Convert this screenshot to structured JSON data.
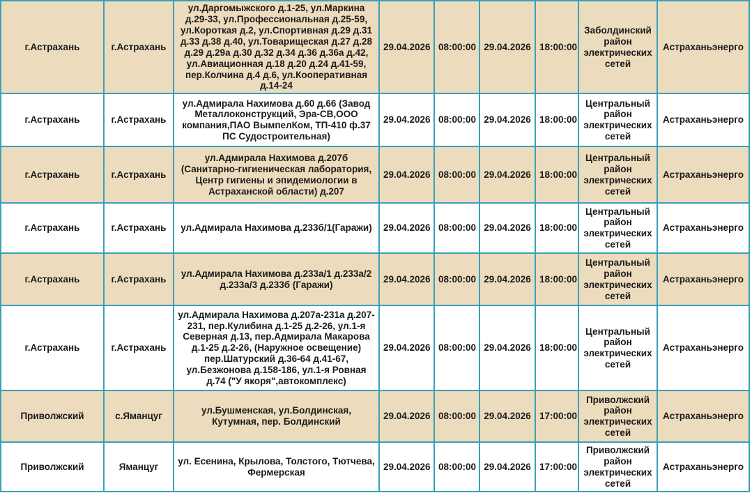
{
  "colors": {
    "row_beige_bg": "#ecdcbd",
    "row_white_bg": "#ffffff",
    "border_teal": "#38a0ba",
    "text": "#1b1b1b"
  },
  "table": {
    "rows": [
      {
        "cells": [
          "г.Астрахань",
          "г.Астрахань",
          "ул.Даргомыжского д.1-25, ул.Маркина д.29-33, ул.Профессиональная д.25-59, ул.Короткая д.2, ул.Спортивная д.29 д.31 д.33 д.38 д.40, ул.Товарищеская д.27 д.28 д.29 д.29а д.30 д.32 д.34 д.36 д.36а д.42, ул.Авиационная д.18 д.20 д.24 д.41-59, пер.Колчина д.4 д.6, ул.Кооперативная д.14-24",
          "29.04.2026",
          "08:00:00",
          "29.04.2026",
          "18:00:00",
          "Заболдинский район электрических сетей",
          "Астраханьэнерго"
        ]
      },
      {
        "cells": [
          "г.Астрахань",
          "г.Астрахань",
          "ул.Адмирала Нахимова д.60 д.66 (Завод Металлоконструкций, Эра-СВ,ООО компания,ПАО ВымпелКом, ТП-410 ф.37 ПС Судостроительная)",
          "29.04.2026",
          "08:00:00",
          "29.04.2026",
          "18:00:00",
          "Центральный район электрических сетей",
          "Астраханьэнерго"
        ]
      },
      {
        "cells": [
          "г.Астрахань",
          "г.Астрахань",
          "ул.Адмирала Нахимова д.207б (Санитарно-гигиеническая лаборатория, Центр гигиены и эпидемиологии в Астраханской области) д.207",
          "29.04.2026",
          "08:00:00",
          "29.04.2026",
          "18:00:00",
          "Центральный район электрических сетей",
          "Астраханьэнерго"
        ]
      },
      {
        "cells": [
          "г.Астрахань",
          "г.Астрахань",
          "ул.Адмирала Нахимова д.233б/1(Гаражи)",
          "29.04.2026",
          "08:00:00",
          "29.04.2026",
          "18:00:00",
          "Центральный район электрических сетей",
          "Астраханьэнерго"
        ]
      },
      {
        "cells": [
          "г.Астрахань",
          "г.Астрахань",
          "ул.Адмирала Нахимова д.233а/1 д.233а/2 д.233а/3 д.233б (Гаражи)",
          "29.04.2026",
          "08:00:00",
          "29.04.2026",
          "18:00:00",
          "Центральный район электрических сетей",
          "Астраханьэнерго"
        ]
      },
      {
        "cells": [
          "г.Астрахань",
          "г.Астрахань",
          "ул.Адмирала Нахимова д.207а-231а д.207-231, пер.Кулибина д.1-25 д.2-26, ул.1-я Северная д.13, пер.Адмирала Макарова д.1-25 д.2-26, (Наружное освещение) пер.Шатурский д.36-64 д.41-67, ул.Безжонова д.158-186, ул.1-я Ровная д.74 (\"У якоря\",автокомплекс)",
          "29.04.2026",
          "08:00:00",
          "29.04.2026",
          "18:00:00",
          "Центральный район электрических сетей",
          "Астраханьэнерго"
        ]
      },
      {
        "cells": [
          "Приволжский",
          "с.Яманцуг",
          "ул.Бушменская, ул.Болдинская, Кутумная, пер. Болдинский",
          "29.04.2026",
          "08:00:00",
          "29.04.2026",
          "17:00:00",
          "Приволжский район электрических сетей",
          "Астраханьэнерго"
        ]
      },
      {
        "cells": [
          "Приволжский",
          "Яманцуг",
          "ул. Есенина, Крылова, Толстого, Тютчева, Фермерская",
          "29.04.2026",
          "08:00:00",
          "29.04.2026",
          "17:00:00",
          "Приволжский район электрических сетей",
          "Астраханьэнерго"
        ]
      }
    ]
  }
}
